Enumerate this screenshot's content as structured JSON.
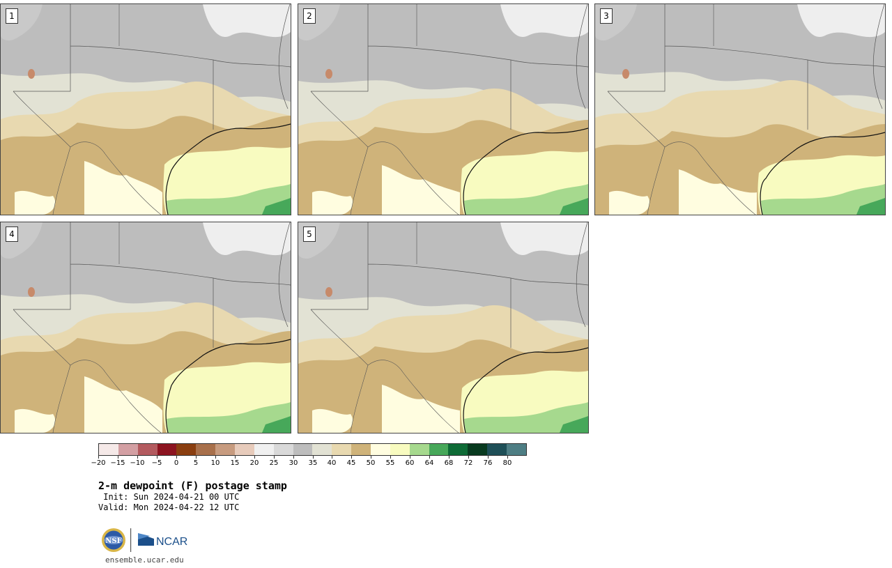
{
  "panels": [
    {
      "label": "1"
    },
    {
      "label": "2"
    },
    {
      "label": "3"
    },
    {
      "label": "4"
    },
    {
      "label": "5"
    }
  ],
  "colorbar": {
    "colors": [
      "#f5e9e8",
      "#d39fa3",
      "#b35a5f",
      "#8c1420",
      "#8a3e10",
      "#a8704b",
      "#c79b7f",
      "#e7cbbb",
      "#f0f0f0",
      "#d9d9d9",
      "#bdbdbd",
      "#e2e2d4",
      "#e8d9b0",
      "#cfb37a",
      "#fffde0",
      "#f8fbc0",
      "#a6d98e",
      "#47a85a",
      "#0e6b36",
      "#083a1f",
      "#1e4f57",
      "#4e7e84"
    ],
    "tick_labels": [
      "−20",
      "−15",
      "−10",
      "−5",
      "0",
      "5",
      "10",
      "15",
      "20",
      "25",
      "30",
      "35",
      "40",
      "45",
      "50",
      "55",
      "60",
      "64",
      "68",
      "72",
      "76",
      "80"
    ]
  },
  "title": "2-m dewpoint (F) postage stamp",
  "init": " Init: Sun 2024-04-21 00 UTC",
  "valid": "Valid: Mon 2024-04-22 12 UTC",
  "logos": {
    "left": "NSF",
    "right": "NCAR"
  },
  "url": "ensemble.ucar.edu",
  "map_colors": {
    "gray": "#bdbdbd",
    "light_gray": "#e2e2d4",
    "tan_light": "#e8d9b0",
    "tan": "#cfb37a",
    "yellow_pale": "#fffde0",
    "yellow": "#f8fbc0",
    "green_light": "#a6d98e",
    "green": "#47a85a",
    "terrain_white": "#eeeeee",
    "border": "#555555",
    "coast": "#111111"
  }
}
